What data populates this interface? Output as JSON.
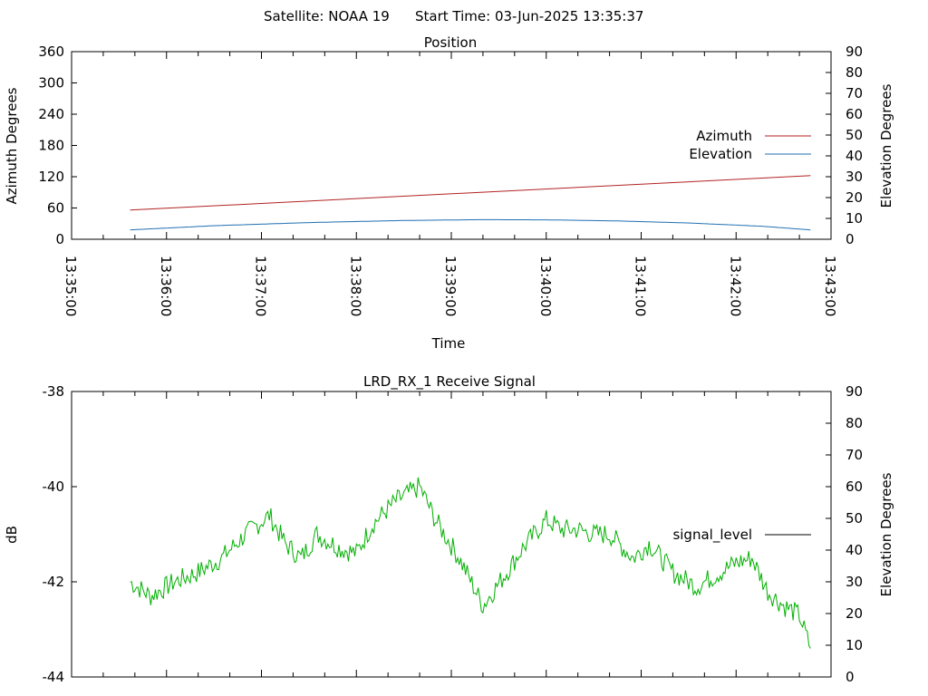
{
  "header": {
    "satellite_label": "Satellite: NOAA 19",
    "start_label": "Start Time: 03-Jun-2025 13:35:37"
  },
  "colors": {
    "azimuth": "#b22222",
    "elevation": "#1f6fb2",
    "signal": "#00b000",
    "legend_signal": "#000000",
    "axis": "#000000"
  },
  "chart_data": [
    {
      "type": "line",
      "title": "Position",
      "xlabel": "Time",
      "ylabel": "Azimuth Degrees",
      "y2label": "Elevation Degrees",
      "xlim": [
        "13:35:00",
        "13:43:00"
      ],
      "ylim": [
        0,
        360
      ],
      "y2lim": [
        0,
        90
      ],
      "yticks": [
        "0",
        "60",
        "120",
        "180",
        "240",
        "300",
        "360"
      ],
      "y2ticks": [
        "0",
        "10",
        "20",
        "30",
        "40",
        "50",
        "60",
        "70",
        "80",
        "90"
      ],
      "xticks": [
        "13:35:00",
        "13:36:00",
        "13:37:00",
        "13:38:00",
        "13:39:00",
        "13:40:00",
        "13:41:00",
        "13:42:00",
        "13:43:00"
      ],
      "legend_position": "right",
      "series": [
        {
          "name": "Azimuth",
          "axis": "left",
          "x": [
            "13:35:37",
            "13:42:47"
          ],
          "values": [
            56,
            122
          ]
        },
        {
          "name": "Elevation",
          "axis": "right",
          "x": [
            "13:35:37",
            "13:36:30",
            "13:37:30",
            "13:38:30",
            "13:39:20",
            "13:40:00",
            "13:40:45",
            "13:41:30",
            "13:42:15",
            "13:42:47"
          ],
          "values": [
            4.5,
            6.5,
            8.0,
            9.0,
            9.4,
            9.3,
            8.8,
            7.8,
            6.3,
            4.5
          ]
        }
      ]
    },
    {
      "type": "line",
      "title": "LRD_RX_1 Receive Signal",
      "ylabel": "dB",
      "y2label": "Elevation Degrees",
      "xlim": [
        "13:35:00",
        "13:43:00"
      ],
      "ylim": [
        -44,
        -38
      ],
      "y2lim": [
        0,
        90
      ],
      "yticks": [
        "-44",
        "-42",
        "-40",
        "-38"
      ],
      "y2ticks": [
        "0",
        "10",
        "20",
        "30",
        "40",
        "50",
        "60",
        "70",
        "80",
        "90"
      ],
      "legend_position": "right",
      "series": [
        {
          "name": "signal_level",
          "axis": "left",
          "x": [
            "13:35:37",
            "13:35:50",
            "13:36:05",
            "13:36:20",
            "13:36:35",
            "13:36:50",
            "13:37:05",
            "13:37:15",
            "13:37:25",
            "13:37:35",
            "13:37:50",
            "13:38:00",
            "13:38:10",
            "13:38:25",
            "13:38:40",
            "13:38:50",
            "13:39:05",
            "13:39:20",
            "13:39:35",
            "13:39:45",
            "13:40:00",
            "13:40:10",
            "13:40:20",
            "13:40:30",
            "13:40:40",
            "13:40:55",
            "13:41:05",
            "13:41:20",
            "13:41:35",
            "13:41:50",
            "13:42:00",
            "13:42:10",
            "13:42:20",
            "13:42:30",
            "13:42:40",
            "13:42:47"
          ],
          "values": [
            -42.0,
            -42.3,
            -42.0,
            -41.8,
            -41.5,
            -41.0,
            -40.6,
            -41.2,
            -41.5,
            -41.0,
            -41.3,
            -41.4,
            -40.8,
            -40.3,
            -40.0,
            -40.7,
            -41.5,
            -42.5,
            -41.8,
            -41.3,
            -40.7,
            -40.9,
            -40.9,
            -41.0,
            -41.0,
            -41.5,
            -41.2,
            -41.8,
            -42.1,
            -41.8,
            -41.6,
            -41.5,
            -42.2,
            -42.5,
            -42.7,
            -43.4
          ]
        }
      ]
    }
  ]
}
